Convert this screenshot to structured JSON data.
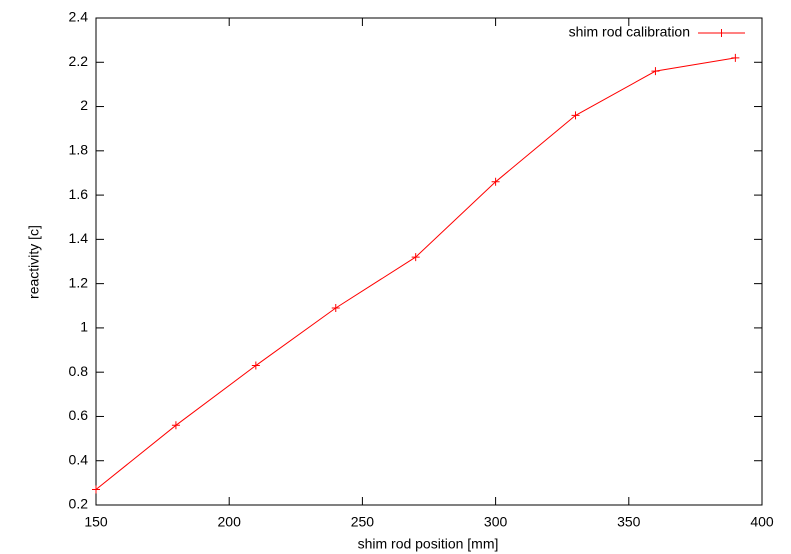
{
  "chart_data": {
    "type": "line",
    "x_label": "shim rod position [mm]",
    "y_label": "reactivity [c]",
    "x": [
      150,
      180,
      210,
      240,
      270,
      300,
      330,
      360,
      390
    ],
    "series": [
      {
        "name": "shim rod calibration",
        "color": "#ff0000",
        "values": [
          0.27,
          0.56,
          0.83,
          1.09,
          1.32,
          1.66,
          1.96,
          2.16,
          2.22
        ]
      }
    ],
    "xlim": [
      150,
      400
    ],
    "xticks": [
      150,
      200,
      250,
      300,
      350,
      400
    ],
    "ylim": [
      0.2,
      2.4
    ],
    "yticks": [
      0.2,
      0.4,
      0.6,
      0.8,
      1,
      1.2,
      1.4,
      1.6,
      1.8,
      2,
      2.2,
      2.4
    ],
    "grid": false,
    "legend": "top-right"
  }
}
